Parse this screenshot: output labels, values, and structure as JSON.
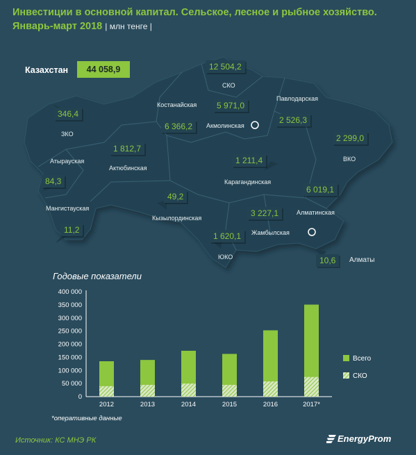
{
  "header": {
    "title": "Инвестиции в основной капитал. Сельское, лесное и рыбное хозяйство.",
    "subtitle": "Январь-март 2018",
    "unit": "| млн тенге |"
  },
  "kazakhstan": {
    "label": "Казахстан",
    "value": "44 058,9"
  },
  "regions": [
    {
      "name": "СКО",
      "value": "12 504,2"
    },
    {
      "name": "Павлодарская",
      "value": "2 526,3"
    },
    {
      "name": "Костанайская",
      "value": "6 366,2"
    },
    {
      "name": "Акмолинская",
      "value": "5 971,0"
    },
    {
      "name": "ЗКО",
      "value": "346,4"
    },
    {
      "name": "Актюбинская",
      "value": "1 812,7"
    },
    {
      "name": "Атырауская",
      "value": "84,3"
    },
    {
      "name": "ВКО",
      "value": "2 299,0"
    },
    {
      "name": "Карагандинская",
      "value": "1 211,4"
    },
    {
      "name": "Алматинская",
      "value": "6 019,1"
    },
    {
      "name": "Кызылординская",
      "value": "49,2"
    },
    {
      "name": "Мангистауская",
      "value": "11,2"
    },
    {
      "name": "Жамбылская",
      "value": "3 227,1"
    },
    {
      "name": "ЮКО",
      "value": "1 620,1"
    },
    {
      "name": "Алматы",
      "value": "10,6"
    }
  ],
  "chart_title": "Годовые показатели",
  "chart_data": {
    "type": "bar",
    "categories": [
      "2012",
      "2013",
      "2014",
      "2015",
      "2016",
      "2017*"
    ],
    "series": [
      {
        "name": "Всего",
        "values": [
          135000,
          140000,
          175000,
          163000,
          253000,
          351000
        ]
      },
      {
        "name": "СКО",
        "values": [
          40000,
          45000,
          50000,
          45000,
          58000,
          75000
        ]
      }
    ],
    "yticks": [
      "0",
      "50 000",
      "100 000",
      "150 000",
      "200 000",
      "250 000",
      "300 000",
      "350 000",
      "400 000"
    ],
    "ylim": [
      0,
      400000
    ],
    "legend_position": "right",
    "colors": {
      "total": "#8dc63f",
      "sko": "#8dc63f",
      "axis": "#ffffff"
    }
  },
  "footnote": "*оперативные данные",
  "source": "Источник: КС МНЭ РК",
  "brand": "EnergyProm",
  "colors": {
    "background": "#2a4b5c",
    "map": "#234352",
    "accent": "#8dc63f"
  }
}
